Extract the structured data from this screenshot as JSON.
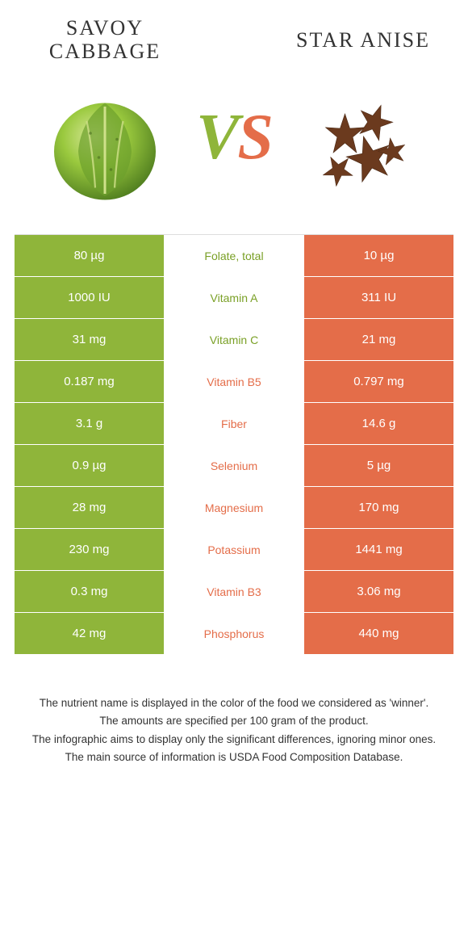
{
  "colors": {
    "left_bg": "#8fb53a",
    "right_bg": "#e46d49",
    "left_text": "#7aa026",
    "right_text": "#e46d49",
    "white": "#ffffff",
    "cell_text": "#ffffff"
  },
  "header": {
    "left_title": "Savoy Cabbage",
    "right_title": "Star Anise",
    "vs_v": "V",
    "vs_s": "S"
  },
  "table": {
    "rows": [
      {
        "label": "Folate, total",
        "left": "80 µg",
        "right": "10 µg",
        "winner": "left"
      },
      {
        "label": "Vitamin A",
        "left": "1000 IU",
        "right": "311 IU",
        "winner": "left"
      },
      {
        "label": "Vitamin C",
        "left": "31 mg",
        "right": "21 mg",
        "winner": "left"
      },
      {
        "label": "Vitamin B5",
        "left": "0.187 mg",
        "right": "0.797 mg",
        "winner": "right"
      },
      {
        "label": "Fiber",
        "left": "3.1 g",
        "right": "14.6 g",
        "winner": "right"
      },
      {
        "label": "Selenium",
        "left": "0.9 µg",
        "right": "5 µg",
        "winner": "right"
      },
      {
        "label": "Magnesium",
        "left": "28 mg",
        "right": "170 mg",
        "winner": "right"
      },
      {
        "label": "Potassium",
        "left": "230 mg",
        "right": "1441 mg",
        "winner": "right"
      },
      {
        "label": "Vitamin B3",
        "left": "0.3 mg",
        "right": "3.06 mg",
        "winner": "right"
      },
      {
        "label": "Phosphorus",
        "left": "42 mg",
        "right": "440 mg",
        "winner": "right"
      }
    ]
  },
  "footnotes": [
    "The nutrient name is displayed in the color of the food we considered as 'winner'.",
    "The amounts are specified per 100 gram of the product.",
    "The infographic aims to display only the significant differences, ignoring minor ones.",
    "The main source of information is USDA Food Composition Database."
  ]
}
